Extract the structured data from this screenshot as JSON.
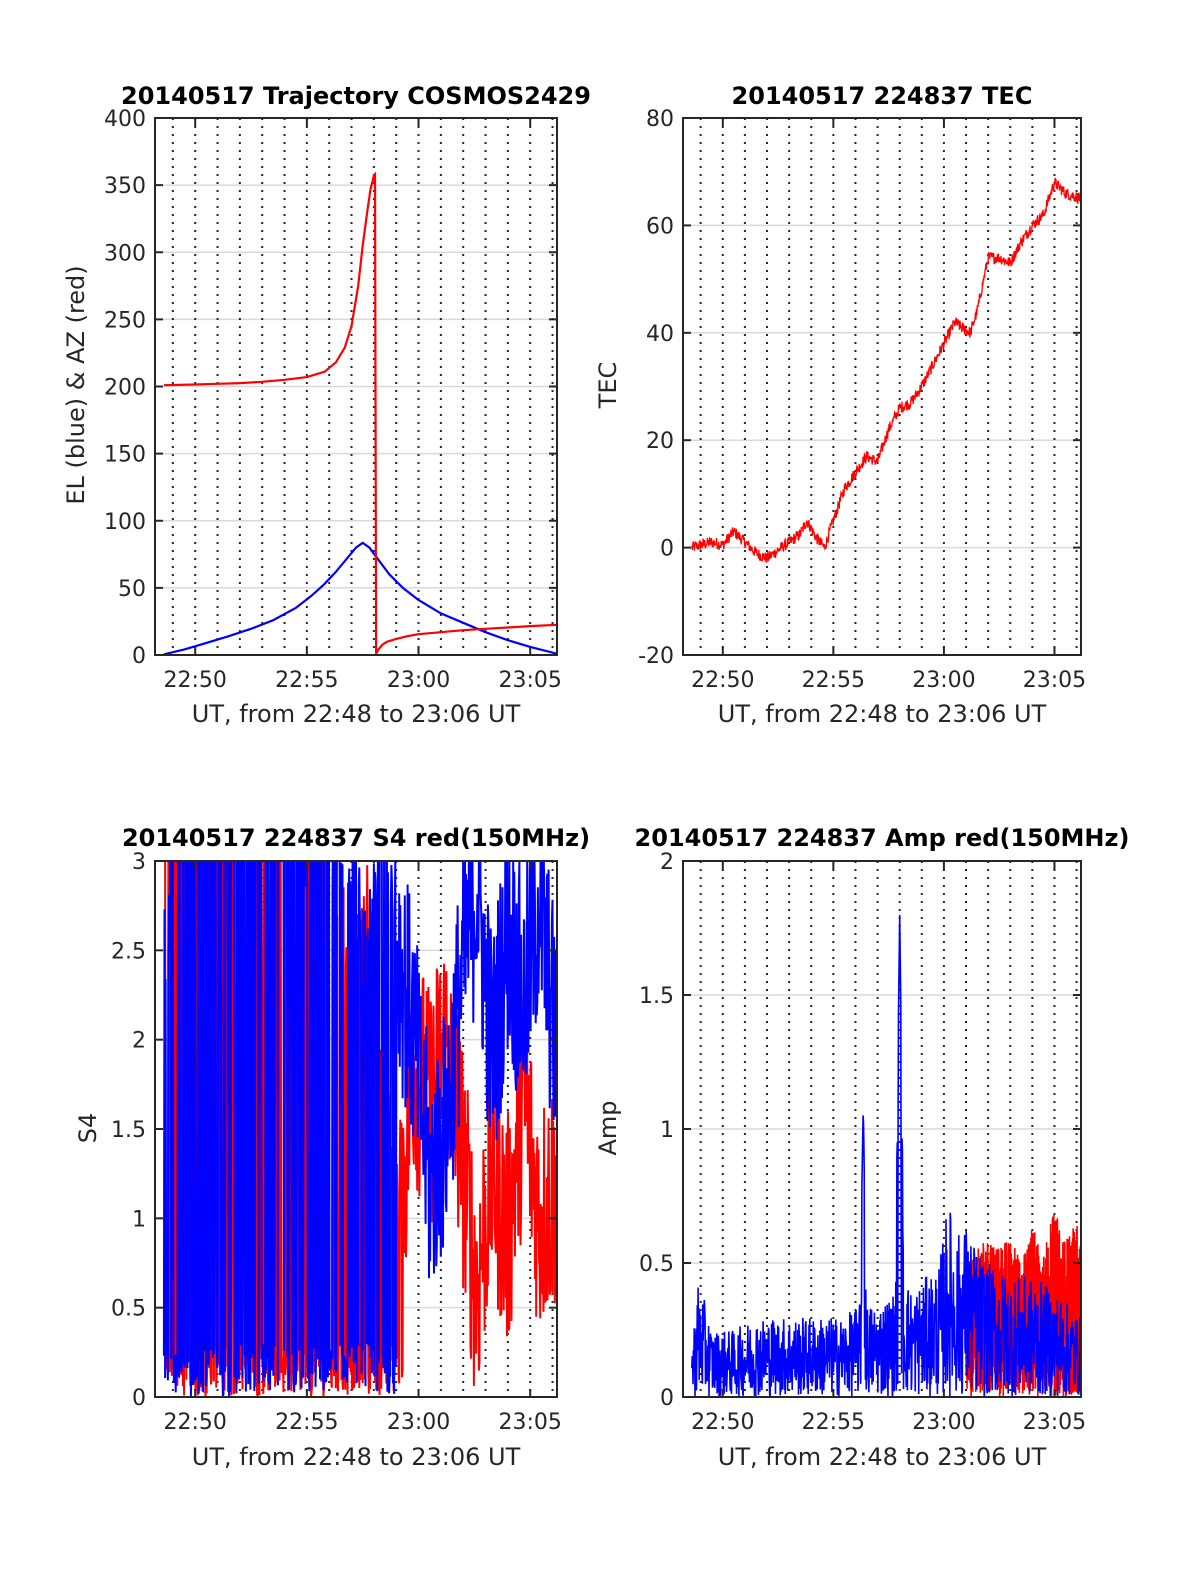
{
  "figure": {
    "x_range_label": "UT, from 22:48 to 23:06 UT"
  },
  "colors": {
    "red": "#ff0000",
    "blue": "#0000ff",
    "grid_h": "#d9d9d9",
    "grid_v": "#262626",
    "axis": "#262626"
  },
  "chart_data": [
    {
      "id": "trajectory",
      "type": "line",
      "title": "20140517 Trajectory COSMOS2429",
      "xlabel": "UT, from 22:48 to 23:06 UT",
      "ylabel": "EL (blue) & AZ (red)",
      "x_unit": "minutes after 22:00 UT",
      "xlim": [
        48.2,
        66.2
      ],
      "ylim": [
        0,
        400
      ],
      "yticks": [
        "0",
        "50",
        "100",
        "150",
        "200",
        "250",
        "300",
        "350",
        "400"
      ],
      "ytick_values": [
        0,
        50,
        100,
        150,
        200,
        250,
        300,
        350,
        400
      ],
      "xticks": [
        "22:50",
        "22:55",
        "23:00",
        "23:05"
      ],
      "xtick_values": [
        50,
        55,
        60,
        65
      ],
      "grid": "horizontal major lines, dotted vertical minute lines",
      "series": [
        {
          "name": "EL (blue)",
          "color": "blue",
          "x": [
            48.6,
            49.5,
            50.5,
            51.5,
            52.5,
            53.5,
            54.5,
            55.2,
            55.8,
            56.3,
            56.8,
            57.2,
            57.5,
            57.8,
            58.2,
            58.7,
            59.3,
            60.0,
            61.0,
            62.0,
            63.0,
            64.0,
            65.0,
            66.2
          ],
          "values": [
            0.5,
            4,
            9,
            14,
            19.5,
            26,
            35,
            44,
            53,
            62,
            72,
            80,
            83.5,
            80,
            71,
            60,
            50,
            41,
            31,
            24,
            17,
            11,
            6,
            1
          ]
        },
        {
          "name": "AZ (red)",
          "color": "red",
          "x": [
            48.6,
            50.0,
            51.0,
            52.0,
            53.0,
            54.0,
            55.0,
            55.8,
            56.3,
            56.7,
            57.0,
            57.3,
            57.5,
            57.7,
            57.85,
            58.0,
            58.05,
            58.1,
            58.2,
            58.3,
            58.4,
            58.6,
            59.0,
            59.5,
            60.0,
            61.0,
            62.0,
            63.0,
            64.0,
            65.0,
            66.2
          ],
          "values": [
            201,
            201.5,
            202,
            202.5,
            203.5,
            205,
            207,
            211,
            218,
            229,
            245,
            275,
            305,
            330,
            347,
            357,
            358,
            1,
            4,
            6,
            8,
            10,
            12,
            14,
            15.5,
            17,
            18.5,
            19.5,
            20.5,
            21.5,
            22.5
          ]
        }
      ]
    },
    {
      "id": "tec",
      "type": "line",
      "title": "20140517 224837 TEC",
      "xlabel": "UT, from 22:48 to 23:06 UT",
      "ylabel": "TEC",
      "x_unit": "minutes after 22:00 UT",
      "xlim": [
        48.2,
        66.2
      ],
      "ylim": [
        -20,
        80
      ],
      "yticks": [
        "-20",
        "0",
        "20",
        "40",
        "60",
        "80"
      ],
      "ytick_values": [
        -20,
        0,
        20,
        40,
        60,
        80
      ],
      "xticks": [
        "22:50",
        "22:55",
        "23:00",
        "23:05"
      ],
      "xtick_values": [
        50,
        55,
        60,
        65
      ],
      "series": [
        {
          "color": "red",
          "x": [
            48.6,
            49.0,
            49.5,
            50.0,
            50.5,
            51.0,
            51.5,
            52.0,
            52.5,
            53.0,
            53.5,
            53.8,
            54.2,
            54.6,
            55.0,
            55.5,
            56.0,
            56.5,
            57.0,
            57.5,
            58.0,
            58.5,
            59.0,
            59.5,
            60.0,
            60.5,
            60.8,
            61.2,
            61.5,
            62.0,
            62.5,
            63.0,
            63.5,
            64.0,
            64.5,
            65.0,
            65.5,
            66.2
          ],
          "values": [
            0,
            0.5,
            1,
            0.5,
            3,
            1,
            -1,
            -2,
            -0.5,
            1,
            2.5,
            5,
            2,
            0,
            5,
            11,
            14,
            17,
            16,
            22,
            26,
            27,
            30,
            34,
            38,
            42,
            41,
            40,
            44,
            54,
            54,
            53,
            57,
            60,
            62,
            68,
            66,
            65
          ]
        }
      ]
    },
    {
      "id": "s4",
      "type": "line",
      "title": "20140517 224837 S4 red(150MHz)",
      "xlabel": "UT, from 22:48 to 23:06 UT",
      "ylabel": "S4",
      "x_unit": "minutes after 22:00 UT",
      "xlim": [
        48.2,
        66.2
      ],
      "ylim": [
        0,
        3
      ],
      "yticks": [
        "0",
        "0.5",
        "1",
        "1.5",
        "2",
        "2.5",
        "3"
      ],
      "ytick_values": [
        0,
        0.5,
        1,
        1.5,
        2,
        2.5,
        3
      ],
      "xticks": [
        "22:50",
        "22:55",
        "23:00",
        "23:05"
      ],
      "xtick_values": [
        50,
        55,
        60,
        65
      ],
      "series": [
        {
          "color": "red",
          "x": [
            48.6,
            49.3,
            50.0,
            50.7,
            51.4,
            52.1,
            52.8,
            53.5,
            54.2,
            54.9,
            55.6,
            56.3,
            57.0,
            57.7,
            58.4,
            59.1,
            59.8,
            60.5,
            61.2,
            61.9,
            62.6,
            63.3,
            64.0,
            64.7,
            65.4,
            66.2
          ],
          "values": [
            2.9,
            3.0,
            3.0,
            3.0,
            2.8,
            3.0,
            3.0,
            3.0,
            3.0,
            3.0,
            3.0,
            2.6,
            2.2,
            2.4,
            1.6,
            0.9,
            1.9,
            1.6,
            2.0,
            1.4,
            0.6,
            1.3,
            0.9,
            1.7,
            1.0,
            1.2
          ]
        },
        {
          "color": "blue",
          "x": [
            48.6,
            49.3,
            50.0,
            50.7,
            51.4,
            52.1,
            52.8,
            53.5,
            54.2,
            54.9,
            55.6,
            56.3,
            57.0,
            57.7,
            58.4,
            59.1,
            59.8,
            60.5,
            61.2,
            61.9,
            62.6,
            63.3,
            64.0,
            64.7,
            65.4,
            66.2
          ],
          "values": [
            2.2,
            3.0,
            3.0,
            3.0,
            3.0,
            3.0,
            3.0,
            3.0,
            3.0,
            2.8,
            2.9,
            3.0,
            2.7,
            2.1,
            3.0,
            2.5,
            2.0,
            1.2,
            1.5,
            2.3,
            2.9,
            1.9,
            2.6,
            2.2,
            2.8,
            1.9
          ]
        }
      ]
    },
    {
      "id": "amp",
      "type": "line",
      "title": "20140517 224837 Amp red(150MHz)",
      "xlabel": "UT, from 22:48 to 23:06 UT",
      "ylabel": "Amp",
      "x_unit": "minutes after 22:00 UT",
      "xlim": [
        48.2,
        66.2
      ],
      "ylim": [
        0,
        2
      ],
      "yticks": [
        "0",
        "0.5",
        "1",
        "1.5",
        "2"
      ],
      "ytick_values": [
        0,
        0.5,
        1,
        1.5,
        2
      ],
      "xticks": [
        "22:50",
        "22:55",
        "23:00",
        "23:05"
      ],
      "xtick_values": [
        50,
        55,
        60,
        65
      ],
      "series": [
        {
          "color": "red",
          "x": [
            61.0,
            61.5,
            62.0,
            62.5,
            63.0,
            63.5,
            64.0,
            64.5,
            65.0,
            65.5,
            66.0,
            66.2
          ],
          "values": [
            0.5,
            0.55,
            0.6,
            0.55,
            0.6,
            0.5,
            0.65,
            0.55,
            0.7,
            0.6,
            0.65,
            0.55
          ]
        },
        {
          "color": "blue",
          "x": [
            48.6,
            48.9,
            49.5,
            50.5,
            51.5,
            52.5,
            53.5,
            54.5,
            55.5,
            56.2,
            56.35,
            56.5,
            57.0,
            57.8,
            58.0,
            58.2,
            58.6,
            59.2,
            59.8,
            60.2,
            60.5,
            61.0,
            61.5,
            62.0,
            63.0,
            64.0,
            65.0,
            66.2
          ],
          "values": [
            0.2,
            0.45,
            0.25,
            0.25,
            0.3,
            0.3,
            0.3,
            0.3,
            0.3,
            0.35,
            1.08,
            0.35,
            0.35,
            0.4,
            1.81,
            0.45,
            0.4,
            0.45,
            0.5,
            0.75,
            0.6,
            0.65,
            0.55,
            0.5,
            0.45,
            0.45,
            0.4,
            0.3
          ]
        }
      ]
    }
  ]
}
